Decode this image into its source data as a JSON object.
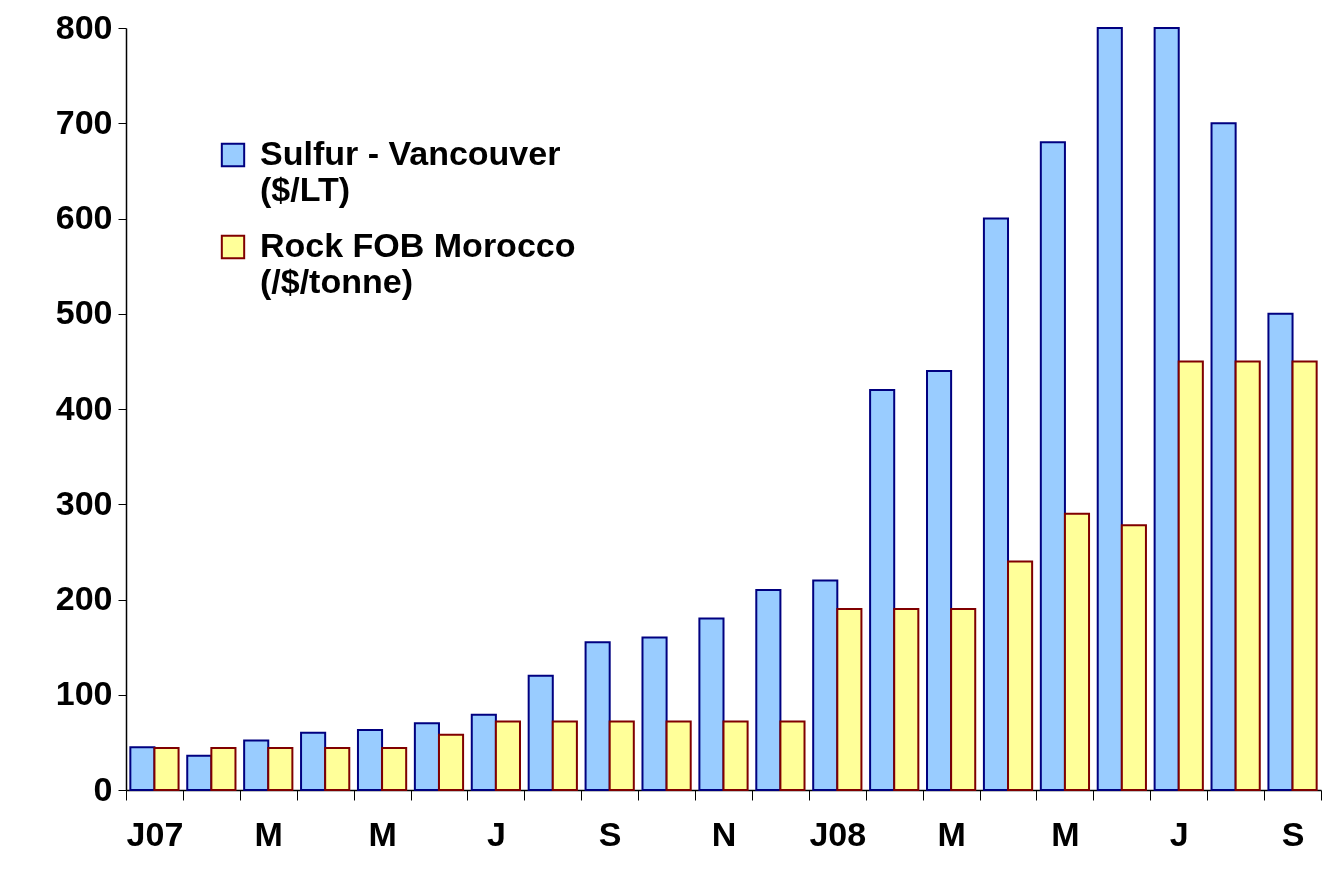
{
  "chart_data": {
    "type": "bar",
    "categories": [
      "J07",
      null,
      "M",
      null,
      "M",
      null,
      "J",
      null,
      "S",
      null,
      "N",
      null,
      "J08",
      null,
      "M",
      null,
      "M",
      null,
      "J",
      null,
      "S"
    ],
    "series": [
      {
        "name": "Sulfur - Vancouver ($/LT)",
        "color": "#99ccff",
        "values": [
          45,
          36,
          52,
          60,
          63,
          70,
          79,
          120,
          155,
          160,
          180,
          210,
          220,
          420,
          440,
          600,
          680,
          800,
          800,
          700,
          500
        ]
      },
      {
        "name": "Rock FOB Morocco (/$/tonne)",
        "color": "#ffff99",
        "values": [
          44,
          44,
          44,
          44,
          44,
          58,
          72,
          72,
          72,
          72,
          72,
          72,
          190,
          190,
          190,
          240,
          290,
          278,
          450,
          450,
          450
        ]
      }
    ],
    "ylim": [
      0,
      800
    ],
    "yticks": [
      0,
      100,
      200,
      300,
      400,
      500,
      600,
      700,
      800
    ],
    "grid": false,
    "legend": "top left"
  }
}
